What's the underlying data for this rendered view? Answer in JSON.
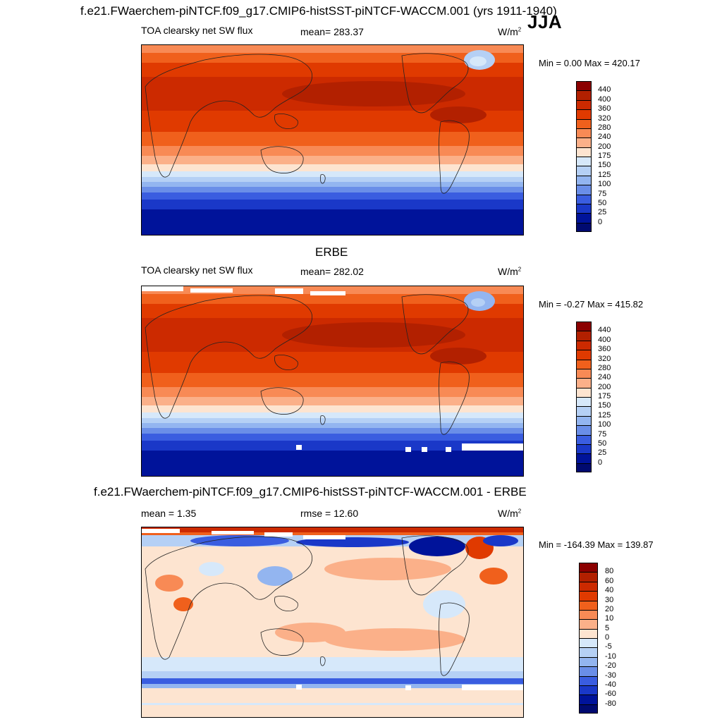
{
  "header": {
    "title": "f.e21.FWaerchem-piNTCF.f09_g17.CMIP6-histSST-piNTCF-WACCM.001 (yrs 1911-1940)",
    "season": "JJA"
  },
  "panels": [
    {
      "id": "model",
      "panel_title": "",
      "variable": "TOA clearsky net SW flux",
      "stat_text": "mean= 283.37",
      "units_base": "W/m",
      "units_exp": "2",
      "minmax": "Min =   0.00 Max = 420.17",
      "colorbar_labels": [
        "440",
        "400",
        "360",
        "320",
        "280",
        "240",
        "200",
        "175",
        "150",
        "125",
        "100",
        "75",
        "50",
        "25",
        "0"
      ]
    },
    {
      "id": "obs",
      "panel_title": "ERBE",
      "variable": "TOA clearsky net SW flux",
      "stat_text": "mean= 282.02",
      "units_base": "W/m",
      "units_exp": "2",
      "minmax": "Min =  -0.27 Max = 415.82",
      "colorbar_labels": [
        "440",
        "400",
        "360",
        "320",
        "280",
        "240",
        "200",
        "175",
        "150",
        "125",
        "100",
        "75",
        "50",
        "25",
        "0"
      ]
    },
    {
      "id": "diff",
      "panel_title": "f.e21.FWaerchem-piNTCF.f09_g17.CMIP6-histSST-piNTCF-WACCM.001 - ERBE",
      "variable": "mean =   1.35",
      "stat_text": "rmse =  12.60",
      "units_base": "W/m",
      "units_exp": "2",
      "minmax": "Min = -164.39 Max = 139.87",
      "colorbar_labels": [
        "80",
        "60",
        "40",
        "30",
        "20",
        "10",
        "5",
        "0",
        "-5",
        "-10",
        "-20",
        "-30",
        "-40",
        "-60",
        "-80"
      ]
    }
  ],
  "colors": {
    "abs_scale": [
      "#8b0000",
      "#b22000",
      "#cc2a00",
      "#e03a00",
      "#f0601c",
      "#f88a55",
      "#fbb089",
      "#fde4d0",
      "#d6e8fa",
      "#b5d0f5",
      "#93b5f0",
      "#6a8ee8",
      "#3a5de0",
      "#1a38c8",
      "#00139a",
      "#000a70"
    ],
    "diff_scale": [
      "#8b0000",
      "#b22000",
      "#cc2a00",
      "#e03a00",
      "#f0601c",
      "#f88a55",
      "#fbb089",
      "#fde4d0",
      "#d6e8fa",
      "#b5d0f5",
      "#93b5f0",
      "#6a8ee8",
      "#3a5de0",
      "#1a38c8",
      "#00139a",
      "#000a70"
    ]
  },
  "chart_data": [
    {
      "type": "heatmap",
      "title": "TOA clearsky net SW flux",
      "subtitle": "mean= 283.37",
      "units": "W/m2",
      "projection": "global lat-lon map",
      "levels": [
        0,
        25,
        50,
        75,
        100,
        125,
        150,
        175,
        200,
        240,
        280,
        320,
        360,
        400,
        440
      ],
      "min": 0.0,
      "max": 420.17,
      "mean": 283.37
    },
    {
      "type": "heatmap",
      "title": "ERBE",
      "subtitle": "TOA clearsky net SW flux",
      "units": "W/m2",
      "levels": [
        0,
        25,
        50,
        75,
        100,
        125,
        150,
        175,
        200,
        240,
        280,
        320,
        360,
        400,
        440
      ],
      "min": -0.27,
      "max": 415.82,
      "mean": 282.02
    },
    {
      "type": "heatmap",
      "title": "f.e21.FWaerchem-piNTCF.f09_g17.CMIP6-histSST-piNTCF-WACCM.001 - ERBE",
      "units": "W/m2",
      "levels": [
        -80,
        -60,
        -40,
        -30,
        -20,
        -10,
        -5,
        0,
        5,
        10,
        20,
        30,
        40,
        60,
        80
      ],
      "min": -164.39,
      "max": 139.87,
      "mean": 1.35,
      "rmse": 12.6
    }
  ]
}
